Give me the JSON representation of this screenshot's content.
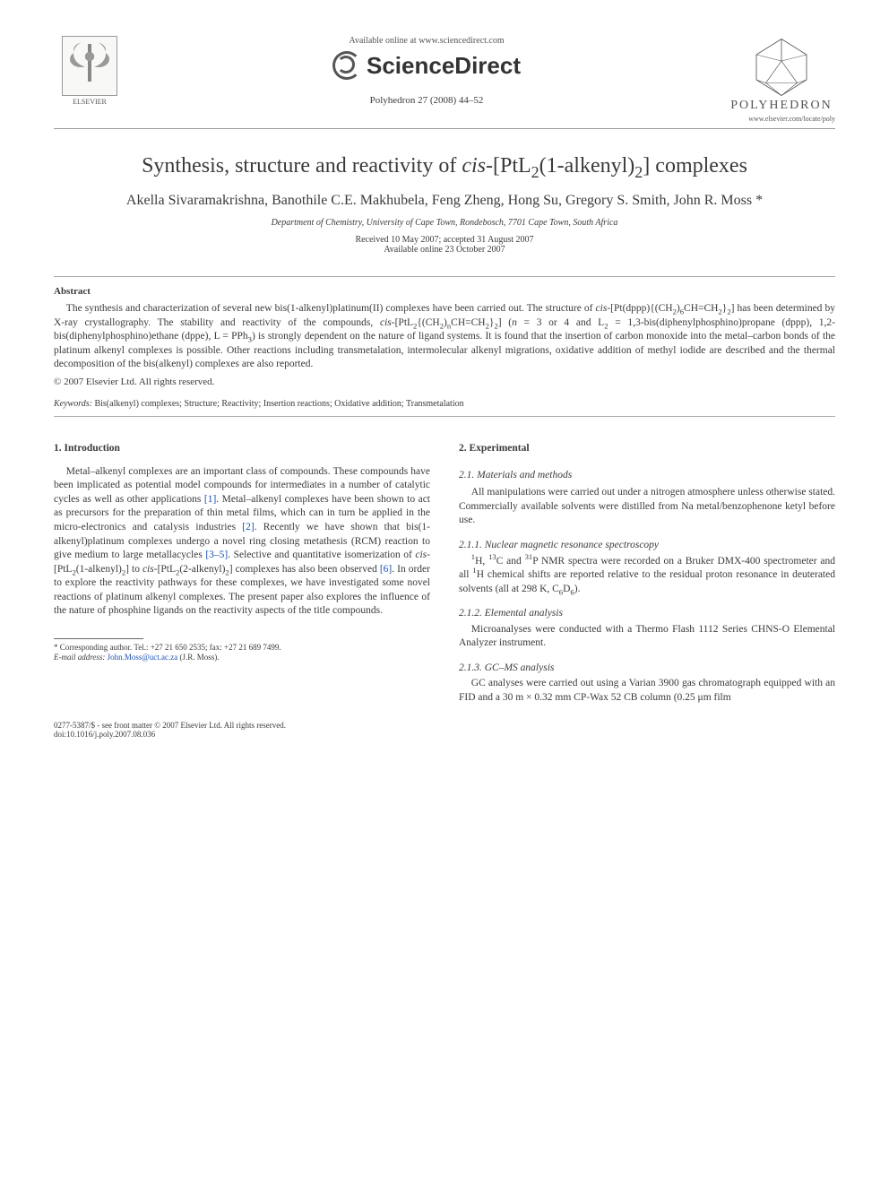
{
  "colors": {
    "text": "#3a3a3a",
    "link": "#1a4fb3",
    "rule": "#999999",
    "background": "#ffffff"
  },
  "header": {
    "elsevier_label": "ELSEVIER",
    "available_line": "Available online at www.sciencedirect.com",
    "sciencedirect": "ScienceDirect",
    "journal_citation": "Polyhedron 27 (2008) 44–52",
    "polyhedron_label": "POLYHEDRON",
    "polyhedron_url": "www.elsevier.com/locate/poly"
  },
  "article": {
    "title_html": "Synthesis, structure and reactivity of <i>cis</i>-[PtL<sub>2</sub>(1-alkenyl)<sub>2</sub>] complexes",
    "authors": "Akella Sivaramakrishna, Banothile C.E. Makhubela, Feng Zheng, Hong Su, Gregory S. Smith, John R. Moss *",
    "affiliation": "Department of Chemistry, University of Cape Town, Rondebosch, 7701 Cape Town, South Africa",
    "received": "Received 10 May 2007; accepted 31 August 2007",
    "online": "Available online 23 October 2007"
  },
  "abstract": {
    "heading": "Abstract",
    "body_html": "The synthesis and characterization of several new bis(1-alkenyl)platinum(II) complexes have been carried out. The structure of <i>cis</i>-[Pt(dppp){(CH<sub>2</sub>)<sub>6</sub>CH=CH<sub>2</sub>}<sub>2</sub>] has been determined by X-ray crystallography. The stability and reactivity of the compounds, <i>cis</i>-[PtL<sub>2</sub>{(CH<sub>2</sub>)<sub>n</sub>CH=CH<sub>2</sub>}<sub>2</sub>] (<i>n</i> = 3 or 4 and L<sub>2</sub> = 1,3-bis(diphenylphosphino)propane (dppp), 1,2-bis(diphenylphosphino)ethane (dppe), L = PPh<sub>3</sub>) is strongly dependent on the nature of ligand systems. It is found that the insertion of carbon monoxide into the metal–carbon bonds of the platinum alkenyl complexes is possible. Other reactions including transmetalation, intermolecular alkenyl migrations, oxidative addition of methyl iodide are described and the thermal decomposition of the bis(alkenyl) complexes are also reported.",
    "copyright": "© 2007 Elsevier Ltd. All rights reserved."
  },
  "keywords": {
    "label": "Keywords:",
    "list": "Bis(alkenyl) complexes; Structure; Reactivity; Insertion reactions; Oxidative addition; Transmetalation"
  },
  "sec1": {
    "heading": "1. Introduction",
    "para_html": "Metal–alkenyl complexes are an important class of compounds. These compounds have been implicated as potential model compounds for intermediates in a number of catalytic cycles as well as other applications <span class=\"ref\">[1]</span>. Metal–alkenyl complexes have been shown to act as precursors for the preparation of thin metal films, which can in turn be applied in the micro-electronics and catalysis industries <span class=\"ref\">[2]</span>. Recently we have shown that bis(1-alkenyl)platinum complexes undergo a novel ring closing metathesis (RCM) reaction to give medium to large metallacycles <span class=\"ref\">[3–5]</span>. Selective and quantitative isomerization of <i>cis</i>-[PtL<sub>2</sub>(1-alkenyl)<sub>2</sub>] to <i>cis</i>-[PtL<sub>2</sub>(2-alkenyl)<sub>2</sub>] complexes has also been observed <span class=\"ref\">[6]</span>. In order to explore the reactivity pathways for these complexes, we have investigated some novel reactions of platinum alkenyl complexes. The present paper also explores the influence of the nature of phosphine ligands on the reactivity aspects of the title compounds."
  },
  "sec2": {
    "heading": "2. Experimental",
    "s21_head": "2.1. Materials and methods",
    "s21_para": "All manipulations were carried out under a nitrogen atmosphere unless otherwise stated. Commercially available solvents were distilled from Na metal/benzophenone ketyl before use.",
    "s211_head": "2.1.1. Nuclear magnetic resonance spectroscopy",
    "s211_para_html": "<sup>1</sup>H, <sup>13</sup>C and <sup>31</sup>P NMR spectra were recorded on a Bruker DMX-400 spectrometer and all <sup>1</sup>H chemical shifts are reported relative to the residual proton resonance in deuterated solvents (all at 298 K, C<sub>6</sub>D<sub>6</sub>).",
    "s212_head": "2.1.2. Elemental analysis",
    "s212_para": "Microanalyses were conducted with a Thermo Flash 1112 Series CHNS-O Elemental Analyzer instrument.",
    "s213_head": "2.1.3. GC–MS analysis",
    "s213_para": "GC analyses were carried out using a Varian 3900 gas chromatograph equipped with an FID and a 30 m × 0.32 mm CP-Wax 52 CB column (0.25 μm film"
  },
  "footnote": {
    "corr": "* Corresponding author. Tel.: +27 21 650 2535; fax: +27 21 689 7499.",
    "email_label": "E-mail address:",
    "email": "John.Moss@uct.ac.za",
    "email_who": "(J.R. Moss)."
  },
  "footer": {
    "line1": "0277-5387/$ - see front matter © 2007 Elsevier Ltd. All rights reserved.",
    "line2": "doi:10.1016/j.poly.2007.08.036"
  }
}
